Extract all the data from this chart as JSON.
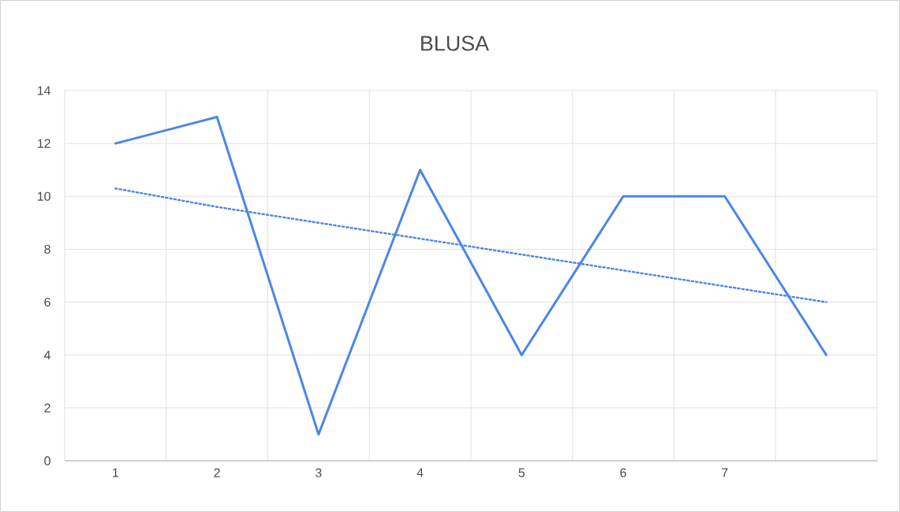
{
  "chart_data": {
    "type": "line",
    "title": "BLUSA",
    "categories": [
      "1",
      "2",
      "3",
      "4",
      "5",
      "6",
      "7",
      null
    ],
    "series": [
      {
        "type": "line",
        "color": "#4a86e8",
        "line_style": "solid",
        "values": [
          12,
          13,
          1,
          11,
          4,
          10,
          10,
          4
        ]
      },
      {
        "type": "line",
        "color": "#4a86e8",
        "line_style": "dotted",
        "values": [
          10.3,
          9.6,
          9.0,
          8.4,
          7.8,
          7.2,
          6.6,
          6.0
        ]
      }
    ],
    "ylim": [
      0,
      14
    ],
    "yticks": [
      0,
      2,
      4,
      6,
      8,
      10,
      12,
      14
    ],
    "grid": true
  }
}
